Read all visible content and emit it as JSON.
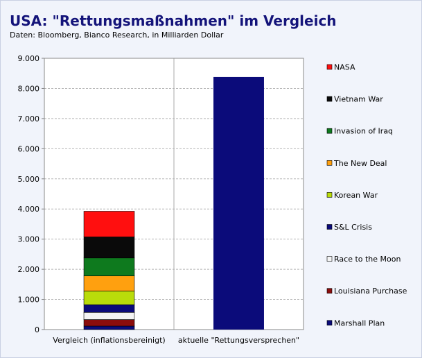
{
  "chart_data": {
    "type": "bar",
    "stacked": true,
    "title": "USA: \"Rettungsmaßnahmen\" im Vergleich",
    "subtitle": "Daten: Bloomberg, Bianco Research, in Milliarden Dollar",
    "categories": [
      "Vergleich (inflationsbereinigt)",
      "aktuelle \"Rettungsversprechen\""
    ],
    "ylim": [
      0,
      9000
    ],
    "yticks": [
      0,
      1000,
      2000,
      3000,
      4000,
      5000,
      6000,
      7000,
      8000,
      9000
    ],
    "ytick_labels": [
      "0",
      "1.000",
      "2.000",
      "3.000",
      "4.000",
      "5.000",
      "6.000",
      "7.000",
      "8.000",
      "9.000"
    ],
    "grid": true,
    "legend_position": "right",
    "series": [
      {
        "name": "Marshall Plan",
        "color": "#0b0b7a",
        "values": [
          115,
          8380
        ]
      },
      {
        "name": "Louisiana Purchase",
        "color": "#8b0d0d",
        "values": [
          217,
          0
        ]
      },
      {
        "name": "Race to the Moon",
        "color": "#f4f4f4",
        "values": [
          237,
          0
        ]
      },
      {
        "name": "S&L Crisis",
        "color": "#0b0b7a",
        "values": [
          256,
          0
        ]
      },
      {
        "name": "Korean War",
        "color": "#b9dc0a",
        "values": [
          454,
          0
        ]
      },
      {
        "name": "The New Deal",
        "color": "#ffa00f",
        "values": [
          500,
          0
        ]
      },
      {
        "name": "Invasion of Iraq",
        "color": "#0e7a1e",
        "values": [
          597,
          0
        ]
      },
      {
        "name": "Vietnam War",
        "color": "#0a0a0a",
        "values": [
          698,
          0
        ]
      },
      {
        "name": "NASA",
        "color": "#ff0f0f",
        "values": [
          851,
          0
        ]
      }
    ]
  }
}
